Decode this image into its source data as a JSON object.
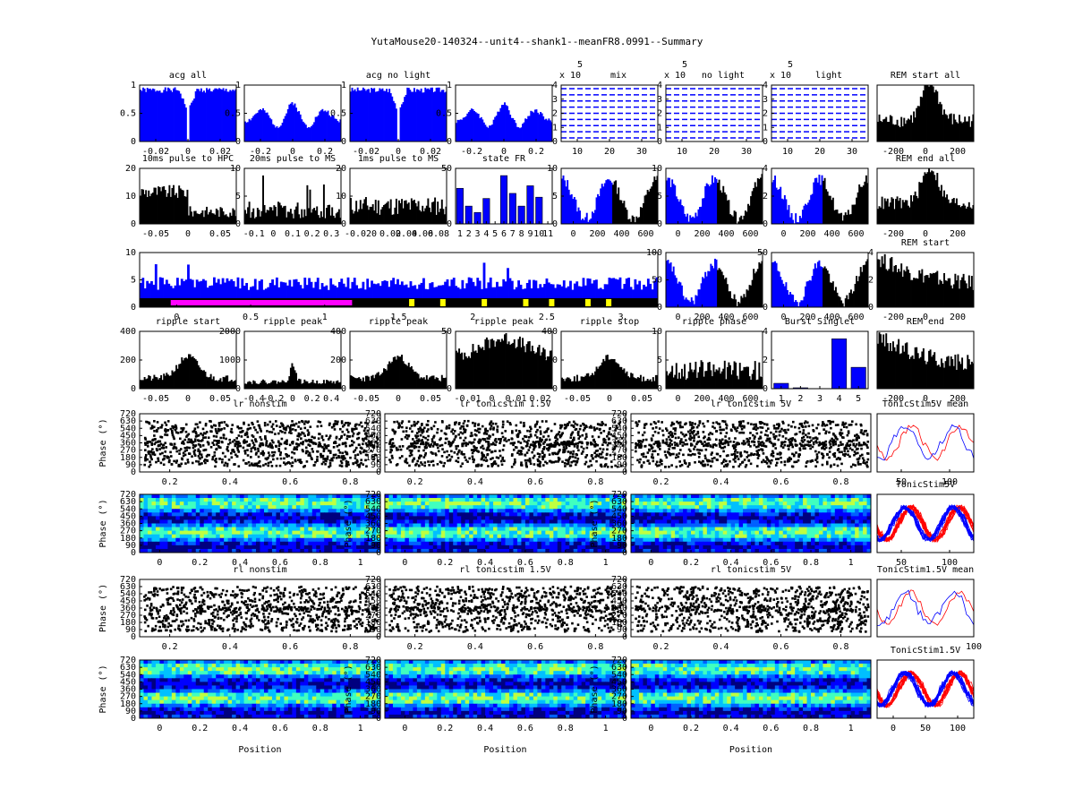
{
  "title": "YutaMouse20-140324--unit4--shank1--meanFR8.0991--Summary",
  "colors": {
    "blue": "#0000ff",
    "black": "#000000",
    "red": "#ff0000",
    "magenta": "#ff00ff",
    "yellow": "#ffff00"
  },
  "chart_data": [
    {
      "id": "p1",
      "type": "bar",
      "title": "acg all",
      "xticks": [
        "-0.02",
        "0",
        "0.02"
      ],
      "yticks": [
        "0",
        "0.5",
        "1"
      ],
      "fill": "#0000ff",
      "profile": "acg",
      "seed": 1
    },
    {
      "id": "p2",
      "type": "bar",
      "title": "",
      "xticks": [
        "-0.2",
        "0",
        "0.2"
      ],
      "yticks": [
        "0",
        "0.5",
        "1"
      ],
      "fill": "#0000ff",
      "profile": "theta",
      "seed": 2
    },
    {
      "id": "p3",
      "type": "bar",
      "title": "acg no light",
      "xticks": [
        "-0.02",
        "0",
        "0.02"
      ],
      "yticks": [
        "0",
        "0.5",
        "1"
      ],
      "fill": "#0000ff",
      "profile": "acg",
      "seed": 3
    },
    {
      "id": "p4",
      "type": "bar",
      "title": "",
      "xticks": [
        "-0.2",
        "0",
        "0.2"
      ],
      "yticks": [
        "0",
        "0.5",
        "1"
      ],
      "fill": "#0000ff",
      "profile": "theta",
      "seed": 4
    },
    {
      "id": "p5",
      "type": "line",
      "title": "mix",
      "exponent": "x 10",
      "exponent_power": "5",
      "xticks": [
        "10",
        "20",
        "30"
      ],
      "yticks": [
        "0",
        "1",
        "2",
        "3",
        "4"
      ]
    },
    {
      "id": "p6",
      "type": "line",
      "title": "no light",
      "exponent": "x 10",
      "exponent_power": "5",
      "xticks": [
        "10",
        "20",
        "30"
      ],
      "yticks": [
        "0",
        "1",
        "2",
        "3",
        "4"
      ]
    },
    {
      "id": "p7",
      "type": "line",
      "title": "light",
      "exponent": "x 10",
      "exponent_power": "5",
      "xticks": [
        "10",
        "20",
        "30"
      ],
      "yticks": [
        "0",
        "1",
        "2",
        "3",
        "4"
      ]
    },
    {
      "id": "p8",
      "type": "bar",
      "title": "REM start all",
      "xticks": [
        "-200",
        "0",
        "200"
      ],
      "yticks": [],
      "fill": "#000000",
      "profile": "peak",
      "seed": 8
    },
    {
      "id": "p9",
      "type": "bar",
      "title": "10ms pulse to HPC",
      "xticks": [
        "-0.05",
        "0",
        "0.05"
      ],
      "yticks": [
        "0",
        "10",
        "20"
      ],
      "fill": "#000000",
      "profile": "pulse",
      "seed": 9
    },
    {
      "id": "p10",
      "type": "bar",
      "title": "20ms pulse to MS",
      "xticks": [
        "-0.1",
        "0",
        "0.1",
        "0.2",
        "0.3"
      ],
      "yticks": [
        "0",
        "5",
        "10"
      ],
      "fill": "#000000",
      "profile": "spiky",
      "seed": 10
    },
    {
      "id": "p11",
      "type": "bar",
      "title": "1ms pulse to MS",
      "xticks": [
        "-0.02",
        "0",
        "0.02",
        "0.04",
        "0.06",
        "0.08"
      ],
      "yticks": [
        "0",
        "10",
        "20"
      ],
      "fill": "#000000",
      "profile": "flat",
      "seed": 11
    },
    {
      "id": "p12",
      "type": "bar",
      "title": "state FR",
      "xticks": [
        "1",
        "2",
        "3",
        "4",
        "5",
        "6",
        "7",
        "8",
        "9",
        "10",
        "11"
      ],
      "yticks": [
        "0",
        "50"
      ],
      "fill": "#0000ff",
      "values": [
        28,
        14,
        9,
        20,
        0,
        38,
        24,
        14,
        30,
        21,
        0
      ]
    },
    {
      "id": "p13",
      "type": "bar",
      "title": "",
      "xticks": [
        "0",
        "200",
        "400",
        "600"
      ],
      "yticks": [
        "0",
        "5",
        "10"
      ],
      "fill": "#0000ff",
      "profile": "wave",
      "seed": 13
    },
    {
      "id": "p14",
      "type": "bar",
      "title": "",
      "xticks": [
        "0",
        "200",
        "400",
        "600"
      ],
      "yticks": [
        "0",
        "5",
        "10"
      ],
      "fill": "#0000ff",
      "profile": "wave",
      "seed": 14
    },
    {
      "id": "p15",
      "type": "bar",
      "title": "",
      "xticks": [
        "0",
        "200",
        "400",
        "600"
      ],
      "yticks": [
        "0",
        "2",
        "4"
      ],
      "fill": "#0000ff",
      "profile": "wave",
      "seed": 15
    },
    {
      "id": "p16",
      "type": "bar",
      "title": "REM end all",
      "xticks": [
        "-200",
        "0",
        "200"
      ],
      "yticks": [],
      "fill": "#000000",
      "profile": "peak",
      "seed": 16
    },
    {
      "id": "p17",
      "type": "area",
      "title": "",
      "xticks": [
        "0",
        "0.5",
        "1",
        "1.5",
        "2",
        "2.5",
        "3"
      ],
      "yticks": [
        "0",
        "5",
        "10"
      ],
      "fill": "#0000ff"
    },
    {
      "id": "p18",
      "type": "bar",
      "title": "",
      "xticks": [
        "0",
        "200",
        "400",
        "600"
      ],
      "yticks": [
        "0",
        "50",
        "100"
      ],
      "fill": "#0000ff",
      "profile": "wave",
      "seed": 18
    },
    {
      "id": "p19",
      "type": "bar",
      "title": "",
      "xticks": [
        "0",
        "200",
        "400",
        "600"
      ],
      "yticks": [
        "0",
        "50"
      ],
      "fill": "#0000ff",
      "profile": "wave",
      "seed": 19
    },
    {
      "id": "p20",
      "type": "bar",
      "title": "REM start",
      "xticks": [
        "-200",
        "0",
        "200"
      ],
      "yticks": [
        "0",
        "2",
        "4"
      ],
      "fill": "#000000",
      "profile": "decay",
      "seed": 20
    },
    {
      "id": "p21",
      "type": "bar",
      "title": "ripple start",
      "xticks": [
        "-0.05",
        "0",
        "0.05"
      ],
      "yticks": [
        "0",
        "200",
        "400"
      ],
      "fill": "#000000",
      "profile": "bump",
      "seed": 21
    },
    {
      "id": "p22",
      "type": "bar",
      "title": "ripple peak",
      "xticks": [
        "-0.4",
        "-0.2",
        "0",
        "0.2",
        "0.4"
      ],
      "yticks": [
        "0",
        "1000",
        "2000"
      ],
      "fill": "#000000",
      "profile": "narrow",
      "seed": 22
    },
    {
      "id": "p23",
      "type": "bar",
      "title": "ripple peak",
      "xticks": [
        "-0.05",
        "0",
        "0.05"
      ],
      "yticks": [
        "0",
        "200",
        "400"
      ],
      "fill": "#000000",
      "profile": "bump",
      "seed": 23
    },
    {
      "id": "p24",
      "type": "bar",
      "title": "ripple peak",
      "xticks": [
        "-0.01",
        "0",
        "0.01",
        "0.02"
      ],
      "yticks": [
        "0",
        "50"
      ],
      "fill": "#000000",
      "profile": "high",
      "seed": 24
    },
    {
      "id": "p25",
      "type": "bar",
      "title": "ripple stop",
      "xticks": [
        "-0.05",
        "0",
        "0.05"
      ],
      "yticks": [
        "0",
        "200",
        "400"
      ],
      "fill": "#000000",
      "profile": "bump",
      "seed": 25
    },
    {
      "id": "p26",
      "type": "bar",
      "title": "ripple phase",
      "xticks": [
        "0",
        "200",
        "400",
        "600"
      ],
      "yticks": [
        "0",
        "5",
        "10"
      ],
      "fill": "#000000",
      "profile": "flat",
      "seed": 26
    },
    {
      "id": "p27",
      "type": "bar",
      "title": "Burst Singlet",
      "xticks": [
        "1",
        "2",
        "3",
        "4",
        "5"
      ],
      "yticks": [
        "0",
        "2",
        "4"
      ],
      "fill": "#0000ff",
      "values": [
        0.3,
        0.05,
        0,
        2.8,
        1.2
      ]
    },
    {
      "id": "p28",
      "type": "bar",
      "title": "REM end",
      "xticks": [
        "-200",
        "0",
        "200"
      ],
      "yticks": [],
      "fill": "#000000",
      "profile": "decay",
      "seed": 28
    },
    {
      "id": "p29",
      "type": "scatter",
      "title": "lr nonstim",
      "ylabel": "Phase (°)",
      "xticks": [
        "0.2",
        "0.4",
        "0.6",
        "0.8"
      ],
      "yticks": [
        "0",
        "90",
        "180",
        "270",
        "360",
        "450",
        "540",
        "630",
        "720"
      ],
      "seed": 29
    },
    {
      "id": "p30",
      "type": "scatter",
      "title": "lr tonicstim 1.5V",
      "ylabel": "",
      "xticks": [
        "0.2",
        "0.4",
        "0.6",
        "0.8"
      ],
      "yticks": [
        "0",
        "90",
        "180",
        "270",
        "360",
        "450",
        "540",
        "630",
        "720"
      ],
      "seed": 30
    },
    {
      "id": "p31",
      "type": "scatter",
      "title": "lr tonicstim 5V",
      "ylabel": "",
      "xticks": [
        "0.2",
        "0.4",
        "0.6",
        "0.8"
      ],
      "yticks": [
        "0",
        "90",
        "180",
        "270",
        "360",
        "450",
        "540",
        "630",
        "720"
      ],
      "seed": 31
    },
    {
      "id": "p32",
      "type": "line",
      "title": "TonicStim5V mean",
      "xticks": [
        "50",
        "100"
      ],
      "yticks": [],
      "seed": 32
    },
    {
      "id": "p33",
      "type": "heatmap",
      "title": "",
      "ylabel": "Phase (°)",
      "xticks": [
        "0",
        "0.2",
        "0.4",
        "0.6",
        "0.8",
        "1"
      ],
      "yticks": [
        "0",
        "90",
        "180",
        "270",
        "360",
        "450",
        "540",
        "630",
        "720"
      ],
      "seed": 33
    },
    {
      "id": "p34",
      "type": "heatmap",
      "title": "",
      "ylabel": "Phase (°)",
      "xticks": [
        "0",
        "0.2",
        "0.4",
        "0.6",
        "0.8",
        "1"
      ],
      "yticks": [
        "0",
        "90",
        "180",
        "270",
        "360",
        "450",
        "540",
        "630",
        "720"
      ],
      "seed": 34
    },
    {
      "id": "p35",
      "type": "heatmap",
      "title": "",
      "ylabel": "Phase (°)",
      "xticks": [
        "0",
        "0.2",
        "0.4",
        "0.6",
        "0.8",
        "1"
      ],
      "yticks": [
        "0",
        "90",
        "180",
        "270",
        "360",
        "450",
        "540",
        "630",
        "720"
      ],
      "seed": 35
    },
    {
      "id": "p36",
      "type": "line",
      "title": "TonicStim5V",
      "xticks": [
        "50",
        "100"
      ],
      "yticks": [],
      "seed": 36
    },
    {
      "id": "p37",
      "type": "scatter",
      "title": "rl nonstim",
      "ylabel": "Phase (°)",
      "xticks": [
        "0.2",
        "0.4",
        "0.6",
        "0.8"
      ],
      "yticks": [
        "0",
        "90",
        "180",
        "270",
        "360",
        "450",
        "540",
        "630",
        "720"
      ],
      "seed": 37
    },
    {
      "id": "p38",
      "type": "scatter",
      "title": "rl tonicstim 1.5V",
      "ylabel": "",
      "xticks": [
        "0.2",
        "0.4",
        "0.6",
        "0.8"
      ],
      "yticks": [
        "0",
        "90",
        "180",
        "270",
        "360",
        "450",
        "540",
        "630",
        "720"
      ],
      "seed": 38
    },
    {
      "id": "p39",
      "type": "scatter",
      "title": "rl tonicstim 5V",
      "ylabel": "",
      "xticks": [
        "0.2",
        "0.4",
        "0.6",
        "0.8"
      ],
      "yticks": [
        "0",
        "90",
        "180",
        "270",
        "360",
        "450",
        "540",
        "630",
        "720"
      ],
      "seed": 39
    },
    {
      "id": "p40",
      "type": "line",
      "title": "TonicStim1.5V mean",
      "xticks": [
        "100"
      ],
      "yticks": [],
      "seed": 40
    },
    {
      "id": "p41",
      "type": "heatmap",
      "title": "",
      "ylabel": "Phase (°)",
      "xlabel": "Position",
      "xticks": [
        "0",
        "0.2",
        "0.4",
        "0.6",
        "0.8",
        "1"
      ],
      "yticks": [
        "0",
        "90",
        "180",
        "270",
        "360",
        "450",
        "540",
        "630",
        "720"
      ],
      "seed": 41
    },
    {
      "id": "p42",
      "type": "heatmap",
      "title": "",
      "ylabel": "Phase (°)",
      "xlabel": "Position",
      "xticks": [
        "0",
        "0.2",
        "0.4",
        "0.6",
        "0.8",
        "1"
      ],
      "yticks": [
        "0",
        "90",
        "180",
        "270",
        "360",
        "450",
        "540",
        "630",
        "720"
      ],
      "seed": 42
    },
    {
      "id": "p43",
      "type": "heatmap",
      "title": "",
      "ylabel": "Phase (°)",
      "xlabel": "Position",
      "xticks": [
        "0",
        "0.2",
        "0.4",
        "0.6",
        "0.8",
        "1"
      ],
      "yticks": [
        "0",
        "90",
        "180",
        "270",
        "360",
        "450",
        "540",
        "630",
        "720"
      ],
      "seed": 43
    },
    {
      "id": "p44",
      "type": "line",
      "title": "TonicStim1.5V",
      "xticks": [
        "0",
        "50",
        "100"
      ],
      "yticks": [],
      "seed": 44
    }
  ]
}
